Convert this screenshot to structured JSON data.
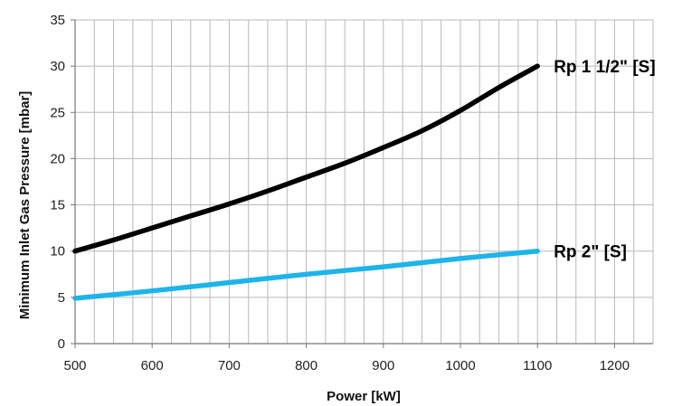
{
  "chart_data": {
    "type": "line",
    "title": "",
    "xlabel": "Power  [kW]",
    "ylabel": "Minimum Inlet Gas Pressure [mbar]",
    "xlim": [
      500,
      1250
    ],
    "ylim": [
      0,
      35
    ],
    "x_ticks": [
      500,
      600,
      700,
      800,
      900,
      1000,
      1100,
      1200
    ],
    "y_ticks": [
      0,
      5,
      10,
      15,
      20,
      25,
      30,
      35
    ],
    "x_minor_step": 25,
    "grid": true,
    "legend": "none",
    "series": [
      {
        "name": "Rp 1 1/2\" [S]",
        "color": "#000000",
        "x": [
          500,
          550,
          600,
          650,
          700,
          750,
          800,
          850,
          900,
          950,
          1000,
          1050,
          1100
        ],
        "y": [
          10,
          11.2,
          12.5,
          13.8,
          15.1,
          16.5,
          18.0,
          19.5,
          21.2,
          23.0,
          25.2,
          27.7,
          30.0
        ]
      },
      {
        "name": "Rp  2\" [S]",
        "color": "#1eb4ea",
        "x": [
          500,
          600,
          700,
          800,
          900,
          1000,
          1100
        ],
        "y": [
          4.9,
          5.7,
          6.6,
          7.5,
          8.3,
          9.2,
          10.0
        ]
      }
    ]
  }
}
